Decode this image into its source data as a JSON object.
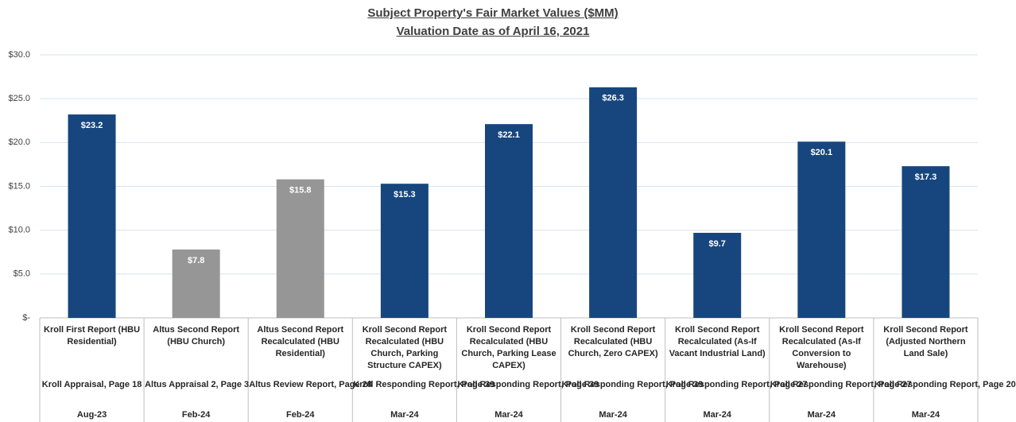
{
  "chart_data": {
    "type": "bar",
    "title": "Subject Property's Fair Market Values ($MM)",
    "subtitle": "Valuation Date as of April 16, 2021",
    "categories": [
      "Kroll First Report (HBU Residential)",
      "Altus Second Report (HBU Church)",
      "Altus Second Report Recalculated (HBU Residential)",
      "Kroll Second Report Recalculated (HBU Church, Parking Structure CAPEX)",
      "Kroll Second Report Recalculated (HBU Church, Parking Lease CAPEX)",
      "Kroll Second Report Recalculated (HBU Church, Zero CAPEX)",
      "Kroll Second Report Recalculated (As-If Vacant Industrial Land)",
      "Kroll Second Report Recalculated (As-If Conversion to Warehouse)",
      "Kroll Second Report (Adjusted Northern Land Sale)"
    ],
    "sources": [
      "Kroll Appraisal, Page 18",
      "Altus Appraisal 2, Page 3",
      "Altus Review Report, Page 28",
      "Kroll Responding Report, Page 39",
      "Kroll Responding Report, Page 39",
      "Kroll Responding Report, Page 39",
      "Kroll Responding Report, Page 27",
      "Kroll Responding Report, Page 27",
      "Kroll Responding Report, Page 20"
    ],
    "dates": [
      "Aug-23",
      "Feb-24",
      "Feb-24",
      "Mar-24",
      "Mar-24",
      "Mar-24",
      "Mar-24",
      "Mar-24",
      "Mar-24"
    ],
    "values": [
      23.2,
      7.8,
      15.8,
      15.3,
      22.1,
      26.3,
      9.7,
      20.1,
      17.3
    ],
    "value_labels": [
      "$23.2",
      "$7.8",
      "$15.8",
      "$15.3",
      "$22.1",
      "$26.3",
      "$9.7",
      "$20.1",
      "$17.3"
    ],
    "colors": [
      "#17467e",
      "#969696",
      "#969696",
      "#17467e",
      "#17467e",
      "#17467e",
      "#17467e",
      "#17467e",
      "#17467e"
    ],
    "ylim": [
      0,
      30
    ],
    "yticks": [
      {
        "value": 0,
        "label": "$-"
      },
      {
        "value": 5,
        "label": "$5.0"
      },
      {
        "value": 10,
        "label": "$10.0"
      },
      {
        "value": 15,
        "label": "$15.0"
      },
      {
        "value": 20,
        "label": "$20.0"
      },
      {
        "value": 25,
        "label": "$25.0"
      },
      {
        "value": 30,
        "label": "$30.0"
      }
    ],
    "grid": true
  }
}
